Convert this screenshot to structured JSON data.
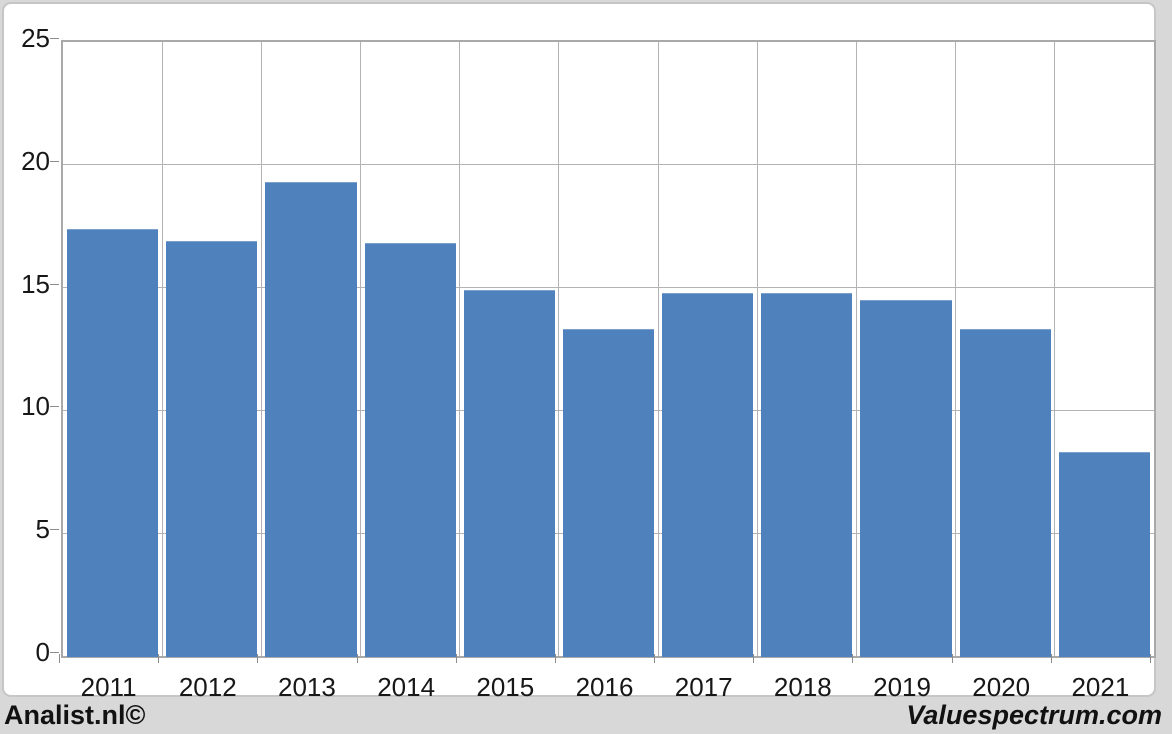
{
  "chart_data": {
    "type": "bar",
    "categories": [
      "2011",
      "2012",
      "2013",
      "2014",
      "2015",
      "2016",
      "2017",
      "2018",
      "2019",
      "2020",
      "2021"
    ],
    "values": [
      17.4,
      16.9,
      19.3,
      16.8,
      14.9,
      13.3,
      14.8,
      14.8,
      14.5,
      13.3,
      8.3
    ],
    "title": "",
    "xlabel": "",
    "ylabel": "",
    "ylim": [
      0,
      25
    ],
    "yticks": [
      0,
      5,
      10,
      15,
      20,
      25
    ],
    "grid": true,
    "legend": "none",
    "bar_color": "#4f81bd"
  },
  "colors": {
    "page_background": "#d8d8d8",
    "chart_background": "#ffffff",
    "gridline": "#b3b3b3",
    "plot_border": "#a9a9a9",
    "frame_border": "#c6c6c6",
    "text": "#171717"
  },
  "footer": {
    "left_text": "Analist.nl©",
    "right_text": "Valuespectrum.com"
  }
}
